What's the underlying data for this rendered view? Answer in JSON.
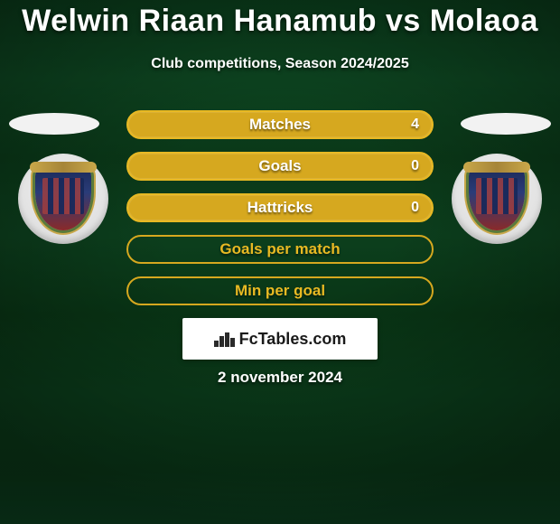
{
  "header": {
    "title": "Welwin Riaan Hanamub vs Molaoa",
    "subtitle": "Club competitions, Season 2024/2025"
  },
  "stats": [
    {
      "label": "Matches",
      "value": "4",
      "fill": "yellow"
    },
    {
      "label": "Goals",
      "value": "0",
      "fill": "yellow"
    },
    {
      "label": "Hattricks",
      "value": "0",
      "fill": "yellow"
    },
    {
      "label": "Goals per match",
      "value": "",
      "fill": "outline"
    },
    {
      "label": "Min per goal",
      "value": "",
      "fill": "outline"
    }
  ],
  "branding": {
    "site": "FcTables.com"
  },
  "date": "2 november 2024",
  "colors": {
    "accent": "#d6a81f",
    "accent_border": "#e8b923",
    "text": "#ffffff",
    "bg_gradient_top": "#0a3a1a",
    "bg_gradient_bottom": "#0c4020"
  }
}
